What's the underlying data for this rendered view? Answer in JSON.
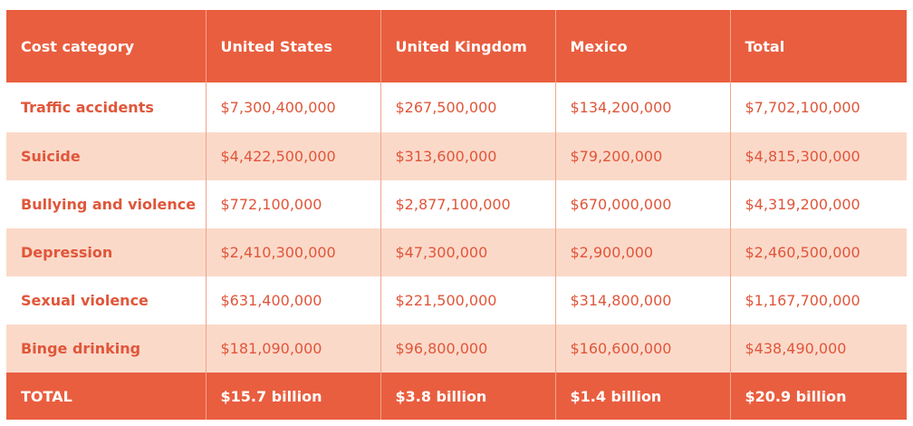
{
  "chart_data": {
    "type": "table",
    "columns": [
      "Cost category",
      "United States",
      "United Kingdom",
      "Mexico",
      "Total"
    ],
    "rows": [
      [
        "Traffic accidents",
        "$7,300,400,000",
        "$267,500,000",
        "$134,200,000",
        "$7,702,100,000"
      ],
      [
        "Suicide",
        "$4,422,500,000",
        "$313,600,000",
        "$79,200,000",
        "$4,815,300,000"
      ],
      [
        "Bullying and violence",
        "$772,100,000",
        "$2,877,100,000",
        "$670,000,000",
        "$4,319,200,000"
      ],
      [
        "Depression",
        "$2,410,300,000",
        "$47,300,000",
        "$2,900,000",
        "$2,460,500,000"
      ],
      [
        "Sexual violence",
        "$631,400,000",
        "$221,500,000",
        "$314,800,000",
        "$1,167,700,000"
      ],
      [
        "Binge drinking",
        "$181,090,000",
        "$96,800,000",
        "$160,600,000",
        "$438,490,000"
      ]
    ],
    "total_row": [
      "TOTAL",
      "$15.7 billion",
      "$3.8 billion",
      "$1.4 billion",
      "$20.9 billion"
    ]
  },
  "colors": {
    "header_bg": "#e95e3f",
    "header_text": "#ffffff",
    "alt_row_bg": "#fbd9c9",
    "row_bg": "#ffffff",
    "cell_text": "#e0563a"
  }
}
